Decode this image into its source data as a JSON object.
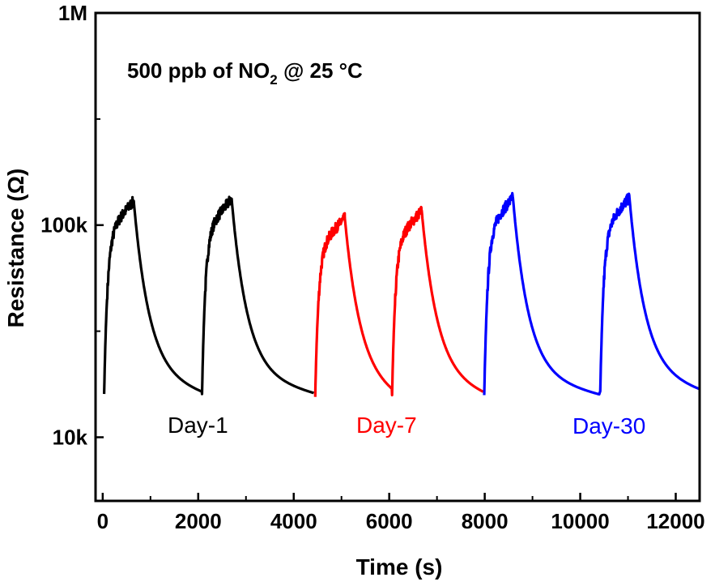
{
  "chart_data": {
    "type": "line",
    "title": "",
    "annotation": {
      "prefix": "500 ppb of NO",
      "subscript": "2",
      "suffix": " @ 25 °C"
    },
    "xlabel": "Time (s)",
    "ylabel": "Resistance (Ω)",
    "xlim": [
      -150,
      12500
    ],
    "ylim_log10": [
      3.7,
      6.0
    ],
    "yscale": "log",
    "x_ticks": [
      0,
      2000,
      4000,
      6000,
      8000,
      10000,
      12000
    ],
    "x_tick_labels": [
      "0",
      "2000",
      "4000",
      "6000",
      "8000",
      "10000",
      "12000"
    ],
    "y_ticks": [
      10000,
      100000,
      1000000
    ],
    "y_tick_labels": [
      "10k",
      "100k",
      "1M"
    ],
    "grid": false,
    "series": [
      {
        "name": "Day-1",
        "color": "#000000",
        "cycles": [
          {
            "on": 30,
            "off": 650,
            "r_base": 16000,
            "r_peak": 130000,
            "end": 2080
          },
          {
            "on": 2080,
            "off": 2700,
            "r_base": 16000,
            "r_peak": 133000,
            "end": 4420
          }
        ]
      },
      {
        "name": "Day-7",
        "color": "#ff0000",
        "cycles": [
          {
            "on": 4450,
            "off": 5070,
            "r_base": 15500,
            "r_peak": 108000,
            "end": 6060
          },
          {
            "on": 6060,
            "off": 6680,
            "r_base": 15800,
            "r_peak": 117000,
            "end": 7970
          }
        ]
      },
      {
        "name": "Day-30",
        "color": "#0000ff",
        "cycles": [
          {
            "on": 7990,
            "off": 8590,
            "r_base": 15800,
            "r_peak": 135000,
            "end": 10400
          },
          {
            "on": 10420,
            "off": 11030,
            "r_base": 16500,
            "r_peak": 135000,
            "end": 12500
          }
        ]
      }
    ],
    "labels": [
      {
        "text": "Day-1",
        "color": "#000000"
      },
      {
        "text": "Day-7",
        "color": "#ff0000"
      },
      {
        "text": "Day-30",
        "color": "#0000ff"
      }
    ]
  }
}
